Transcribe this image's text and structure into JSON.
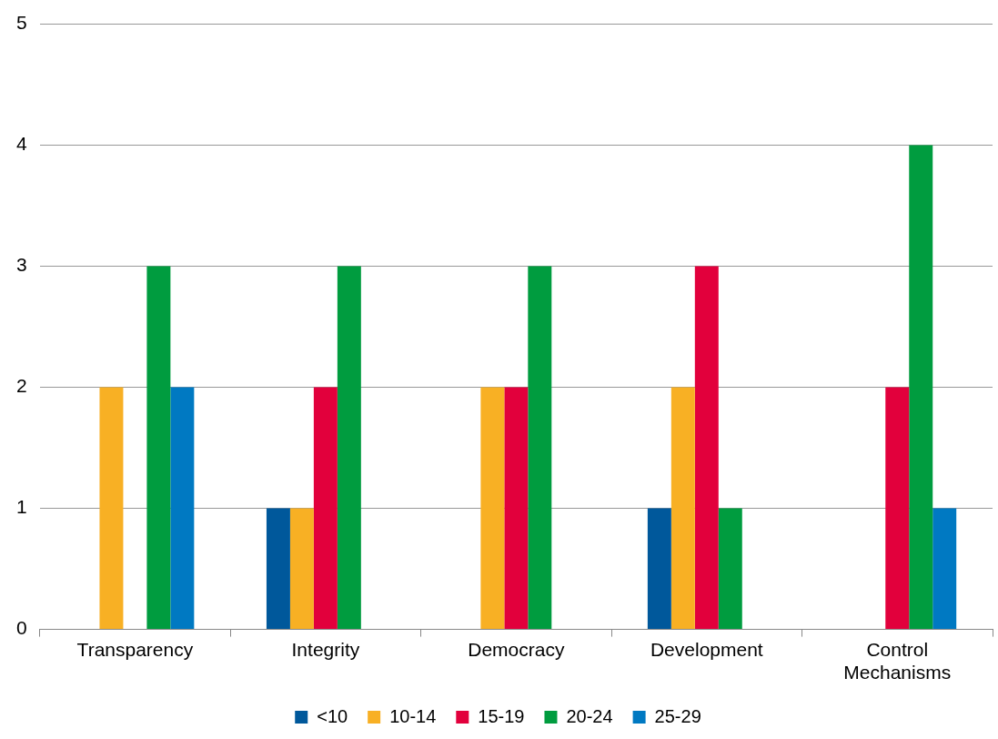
{
  "chart_data": {
    "type": "bar",
    "categories": [
      "Transparency",
      "Integrity",
      "Democracy",
      "Development",
      "Control Mechanisms"
    ],
    "series": [
      {
        "name": "<10",
        "color": "#00589b",
        "values": [
          0,
          1,
          0,
          1,
          0
        ]
      },
      {
        "name": "10-14",
        "color": "#f8b024",
        "values": [
          2,
          1,
          2,
          2,
          0
        ]
      },
      {
        "name": "15-19",
        "color": "#e2003c",
        "values": [
          0,
          2,
          2,
          3,
          2
        ]
      },
      {
        "name": "20-24",
        "color": "#009c3f",
        "values": [
          3,
          3,
          3,
          1,
          4
        ]
      },
      {
        "name": "25-29",
        "color": "#0079c2",
        "values": [
          2,
          0,
          0,
          0,
          1
        ]
      }
    ],
    "ylim": [
      0,
      5
    ],
    "yticks": [
      0,
      1,
      2,
      3,
      4,
      5
    ],
    "grid": "y",
    "legend": "bottom"
  }
}
